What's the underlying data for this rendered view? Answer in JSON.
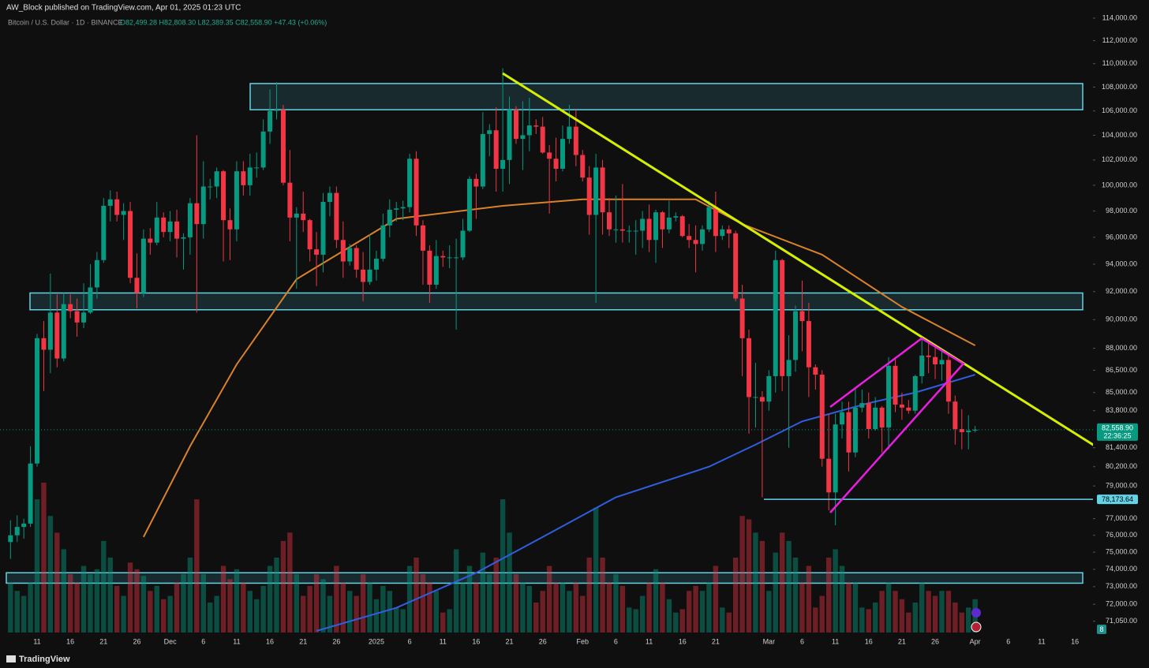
{
  "header": {
    "publisher": "AW_Block published on TradingView.com, Apr 01, 2025 01:23 UTC",
    "symbol": "Bitcoin / U.S. Dollar · 1D · BINANCE",
    "ohlc": "O82,499.28 H82,808.30 L82,389.35 C82,558.90 +47.43 (+0.06%)"
  },
  "footer": {
    "brand": "TradingView",
    "badge": "8"
  },
  "chart_data": {
    "type": "candlestick",
    "log_scale": true,
    "up_color": "#089981",
    "down_color": "#f23645",
    "categories": [
      null,
      null,
      null,
      null,
      "11",
      null,
      null,
      null,
      null,
      "16",
      null,
      null,
      null,
      null,
      "21",
      null,
      null,
      null,
      null,
      "26",
      null,
      null,
      null,
      null,
      "Dec",
      null,
      null,
      null,
      null,
      "6",
      null,
      null,
      null,
      null,
      "11",
      null,
      null,
      null,
      null,
      "16",
      null,
      null,
      null,
      null,
      "21",
      null,
      null,
      null,
      null,
      "26",
      null,
      null,
      null,
      null,
      null,
      "2025",
      null,
      null,
      null,
      null,
      "6",
      null,
      null,
      null,
      null,
      "11",
      null,
      null,
      null,
      null,
      "16",
      null,
      null,
      null,
      null,
      "21",
      null,
      null,
      null,
      null,
      "26",
      null,
      null,
      null,
      null,
      null,
      "Feb",
      null,
      null,
      null,
      null,
      "6",
      null,
      null,
      null,
      null,
      "11",
      null,
      null,
      null,
      null,
      "16",
      null,
      null,
      null,
      null,
      "21",
      null,
      null,
      null,
      null,
      null,
      null,
      null,
      "Mar",
      null,
      null,
      null,
      null,
      "6",
      null,
      null,
      null,
      null,
      "11",
      null,
      null,
      null,
      null,
      "16",
      null,
      null,
      null,
      null,
      "21",
      null,
      null,
      null,
      null,
      "26",
      null,
      null,
      null,
      null,
      null,
      "Apr",
      null,
      null,
      null,
      null,
      "6",
      null,
      null,
      null,
      null,
      "11",
      null,
      null,
      null,
      null,
      "16",
      null,
      null
    ],
    "open": [
      75600,
      76000,
      76500,
      76700,
      80400,
      88700,
      87900,
      90500,
      87300,
      91100,
      90600,
      89800,
      90500,
      92300,
      94300,
      98400,
      98900,
      97700,
      98000,
      93000,
      91900,
      95900,
      95600,
      97500,
      96400,
      97200,
      95900,
      96000,
      98600,
      97000,
      99900,
      99900,
      101100,
      97300,
      96600,
      101100,
      100000,
      101400,
      101400,
      104300,
      106000,
      106100,
      100200,
      97500,
      97800,
      97300,
      95100,
      94700,
      98700,
      99400,
      95800,
      94200,
      95200,
      93600,
      92700,
      93600,
      94400,
      96900,
      98100,
      98200,
      98300,
      102100,
      96900,
      95000,
      92500,
      94600,
      94500,
      94500,
      94500,
      96500,
      100500,
      99900,
      104100,
      104400,
      101300,
      102000,
      106100,
      103700,
      104000,
      104800,
      104700,
      102600,
      102100,
      101300,
      103700,
      104700,
      102400,
      100600,
      97700,
      101400,
      97900,
      96600,
      96600,
      96500,
      96500,
      96500,
      97400,
      95800,
      97900,
      96600,
      97500,
      97600,
      96100,
      95800,
      95500,
      96600,
      98300,
      96100,
      96600,
      96300,
      91500,
      88700,
      84700,
      84700,
      84400,
      86100,
      94300,
      86100,
      87200,
      90600,
      89900,
      86700,
      86200,
      80700,
      78600,
      82900,
      83700,
      81100,
      84000,
      84300,
      82600,
      84000,
      82700,
      86800,
      84200,
      84000,
      83800,
      86100,
      87500,
      87400,
      86900,
      87200,
      84400,
      82600,
      82400,
      82499.28,
      null,
      null,
      null,
      null,
      null,
      null,
      null,
      null,
      null,
      null,
      null,
      null,
      null,
      null,
      null,
      null,
      null
    ],
    "high": [
      76900,
      77200,
      77000,
      81500,
      89000,
      89900,
      93300,
      91800,
      91900,
      91800,
      91500,
      92600,
      94000,
      94900,
      99000,
      99600,
      99500,
      98600,
      98700,
      94800,
      96600,
      96700,
      98700,
      97900,
      98000,
      98100,
      96300,
      99000,
      104000,
      101900,
      100500,
      101400,
      101200,
      98200,
      101900,
      101900,
      102500,
      102600,
      105300,
      107800,
      108400,
      106500,
      102800,
      98300,
      99500,
      97400,
      96400,
      99400,
      99900,
      99900,
      97200,
      95500,
      95400,
      94900,
      96200,
      95000,
      97800,
      98900,
      98700,
      98800,
      102500,
      102700,
      97300,
      95400,
      95800,
      95000,
      95400,
      95900,
      97400,
      100700,
      100900,
      105900,
      104900,
      106300,
      109600,
      107200,
      106400,
      106800,
      107100,
      105300,
      105500,
      103200,
      103800,
      104800,
      106500,
      106100,
      102800,
      101500,
      102500,
      102000,
      99000,
      99200,
      100100,
      96900,
      97300,
      98000,
      98500,
      98100,
      98000,
      98800,
      97900,
      97700,
      97000,
      96900,
      96900,
      98800,
      99500,
      96900,
      96900,
      96500,
      92500,
      89300,
      87000,
      85100,
      86500,
      95000,
      94400,
      88900,
      91000,
      92800,
      91200,
      86900,
      86500,
      83600,
      83600,
      84400,
      84400,
      85300,
      85200,
      85000,
      84700,
      84100,
      87400,
      87400,
      85000,
      84500,
      86200,
      88800,
      88500,
      88300,
      87800,
      87500,
      84800,
      83900,
      83500,
      82808.3,
      null,
      null,
      null,
      null,
      null,
      null,
      null,
      null,
      null,
      null,
      null,
      null,
      null,
      null,
      null,
      null,
      null
    ],
    "low": [
      74600,
      75600,
      75800,
      76500,
      80200,
      85100,
      86300,
      86700,
      87100,
      90100,
      88800,
      89400,
      90400,
      91500,
      94100,
      97200,
      97200,
      95800,
      92600,
      90800,
      91600,
      94700,
      95400,
      96000,
      95700,
      94500,
      93600,
      94700,
      90500,
      95900,
      98900,
      99000,
      94200,
      94300,
      95700,
      99200,
      99200,
      100600,
      101200,
      103300,
      105300,
      100000,
      95700,
      92200,
      96400,
      94200,
      92400,
      93400,
      97600,
      95200,
      93000,
      93900,
      93000,
      91300,
      92500,
      92800,
      94200,
      96000,
      97200,
      97300,
      97900,
      96100,
      92500,
      91200,
      92200,
      93800,
      93700,
      89300,
      94300,
      96400,
      97400,
      99700,
      102300,
      99500,
      99500,
      100100,
      103300,
      101200,
      102700,
      104100,
      102500,
      97800,
      100300,
      101100,
      103300,
      101500,
      100300,
      96200,
      91200,
      96200,
      96100,
      95600,
      95600,
      95600,
      94700,
      95200,
      94900,
      94100,
      95200,
      96300,
      97200,
      96000,
      95200,
      93400,
      95000,
      96400,
      94900,
      95800,
      95200,
      91300,
      86100,
      82300,
      82700,
      78300,
      83800,
      85000,
      85100,
      81400,
      86400,
      87800,
      84700,
      85200,
      80200,
      77500,
      76600,
      82000,
      79900,
      80800,
      83700,
      82000,
      82500,
      81100,
      81300,
      83700,
      83200,
      83600,
      83600,
      85600,
      86300,
      85900,
      85800,
      83600,
      81600,
      81300,
      81300,
      82389.35,
      null,
      null,
      null,
      null,
      null,
      null,
      null,
      null,
      null,
      null,
      null,
      null,
      null,
      null,
      null,
      null,
      null
    ],
    "close": [
      76000,
      76500,
      76700,
      80400,
      88700,
      87900,
      90500,
      87300,
      91100,
      90600,
      89800,
      90500,
      92300,
      94300,
      98400,
      98900,
      97700,
      98000,
      93000,
      91900,
      95900,
      95600,
      97500,
      96400,
      97200,
      95900,
      96000,
      98600,
      97000,
      99900,
      99900,
      101100,
      97300,
      96600,
      101100,
      100000,
      101400,
      101400,
      104300,
      106000,
      106100,
      100200,
      97500,
      97800,
      97300,
      95100,
      94700,
      98700,
      99400,
      95800,
      94200,
      95200,
      93600,
      92700,
      93600,
      94400,
      96900,
      98100,
      98200,
      98300,
      102100,
      96900,
      95000,
      92500,
      94600,
      94500,
      94500,
      94500,
      96500,
      100500,
      99900,
      104100,
      104400,
      101300,
      102000,
      106100,
      103700,
      104000,
      104800,
      104700,
      102600,
      102100,
      101300,
      103700,
      104700,
      102400,
      100600,
      97700,
      101400,
      97900,
      96600,
      96600,
      96500,
      96500,
      96500,
      97400,
      95800,
      97900,
      96600,
      97500,
      97600,
      96100,
      95800,
      95500,
      96600,
      98300,
      96100,
      96600,
      96300,
      91500,
      88700,
      84700,
      84700,
      84400,
      86100,
      94300,
      86100,
      87200,
      90600,
      89900,
      86700,
      86200,
      80700,
      78600,
      82900,
      83700,
      81100,
      84000,
      84300,
      82600,
      84000,
      82700,
      86800,
      84200,
      84000,
      83800,
      86100,
      87500,
      87400,
      86900,
      87200,
      84400,
      82600,
      82400,
      82499.28,
      82558.9,
      null,
      null,
      null,
      null,
      null,
      null,
      null,
      null,
      null,
      null,
      null,
      null,
      null,
      null,
      null,
      null,
      null
    ],
    "volume": [
      30000,
      25000,
      22000,
      30000,
      80000,
      90000,
      70000,
      60000,
      50000,
      35000,
      30000,
      40000,
      35000,
      38000,
      55000,
      45000,
      28000,
      22000,
      42000,
      38000,
      34000,
      25000,
      28000,
      20000,
      22000,
      30000,
      35000,
      45000,
      80000,
      35000,
      18000,
      22000,
      40000,
      32000,
      38000,
      30000,
      25000,
      20000,
      28000,
      40000,
      45000,
      55000,
      60000,
      35000,
      22000,
      28000,
      35000,
      32000,
      22000,
      40000,
      30000,
      25000,
      22000,
      35000,
      30000,
      20000,
      28000,
      25000,
      15000,
      14000,
      40000,
      45000,
      35000,
      30000,
      25000,
      12000,
      14000,
      50000,
      30000,
      40000,
      30000,
      48000,
      35000,
      45000,
      80000,
      60000,
      35000,
      30000,
      28000,
      18000,
      25000,
      40000,
      30000,
      30000,
      25000,
      30000,
      22000,
      45000,
      75000,
      45000,
      30000,
      35000,
      28000,
      15000,
      14000,
      22000,
      30000,
      38000,
      30000,
      20000,
      12000,
      14000,
      25000,
      28000,
      25000,
      30000,
      40000,
      15000,
      12000,
      45000,
      70000,
      68000,
      60000,
      55000,
      25000,
      48000,
      60000,
      55000,
      45000,
      30000,
      40000,
      15000,
      22000,
      45000,
      50000,
      40000,
      30000,
      30000,
      15000,
      14000,
      18000,
      25000,
      30000,
      25000,
      20000,
      12000,
      18000,
      30000,
      25000,
      22000,
      25000,
      25000,
      18000,
      12000,
      15000,
      20000,
      null,
      null,
      null,
      null,
      null,
      null,
      null,
      null,
      null,
      null,
      null,
      null,
      null,
      null,
      null,
      null,
      null
    ],
    "overlays": [
      {
        "color": "#2f5fe0",
        "points": [
          [
            46,
            70510
          ],
          [
            58,
            71800
          ],
          [
            70,
            73800
          ],
          [
            80,
            75900
          ],
          [
            91,
            78300
          ],
          [
            105,
            80200
          ],
          [
            112,
            81600
          ],
          [
            119,
            83100
          ],
          [
            129,
            84300
          ],
          [
            136,
            85000
          ],
          [
            145,
            86200
          ]
        ]
      },
      {
        "color": "#d9822b",
        "points": [
          [
            20,
            75900
          ],
          [
            27,
            81500
          ],
          [
            34,
            86900
          ],
          [
            43,
            92900
          ],
          [
            58,
            97400
          ],
          [
            74,
            98400
          ],
          [
            86,
            98900
          ],
          [
            103,
            98900
          ],
          [
            110,
            97000
          ],
          [
            122,
            94700
          ],
          [
            134,
            90900
          ],
          [
            145,
            88200
          ]
        ]
      }
    ],
    "zones": [
      {
        "low": 106100,
        "high": 108300
      },
      {
        "low": 90700,
        "high": 91900
      },
      {
        "low": 73200,
        "high": 73800
      }
    ],
    "ylim": [
      70510,
      115060
    ],
    "yticks": [
      {
        "value": 114000,
        "label": "114,000.00"
      },
      {
        "value": 112000,
        "label": "112,000.00"
      },
      {
        "value": 110000,
        "label": "110,000.00"
      },
      {
        "value": 108000,
        "label": "108,000.00"
      },
      {
        "value": 106000,
        "label": "106,000.00"
      },
      {
        "value": 104000,
        "label": "104,000.00"
      },
      {
        "value": 102000,
        "label": "102,000.00"
      },
      {
        "value": 100000,
        "label": "100,000.00"
      },
      {
        "value": 98000,
        "label": "98,000.00"
      },
      {
        "value": 96000,
        "label": "96,000.00"
      },
      {
        "value": 94000,
        "label": "94,000.00"
      },
      {
        "value": 92000,
        "label": "92,000.00"
      },
      {
        "value": 90000,
        "label": "90,000.00"
      },
      {
        "value": 88000,
        "label": "88,000.00"
      },
      {
        "value": 86500,
        "label": "86,500.00"
      },
      {
        "value": 85000,
        "label": "85,000.00"
      },
      {
        "value": 83800,
        "label": "83,800.00"
      },
      {
        "value": 81400,
        "label": "81,400.00"
      },
      {
        "value": 80200,
        "label": "80,200.00"
      },
      {
        "value": 79000,
        "label": "79,000.00"
      },
      {
        "value": 77000,
        "label": "77,000.00"
      },
      {
        "value": 76000,
        "label": "76,000.00"
      },
      {
        "value": 75000,
        "label": "75,000.00"
      },
      {
        "value": 74000,
        "label": "74,000.00"
      },
      {
        "value": 73000,
        "label": "73,000.00"
      },
      {
        "value": 72000,
        "label": "72,000.00"
      },
      {
        "value": 71050,
        "label": "71,050.00"
      }
    ],
    "levels": [
      {
        "value": 78173.64,
        "label": "78,173.64"
      }
    ],
    "last_price": {
      "value": 82558.9,
      "label": "82,558.90",
      "countdown": "22:36:25"
    }
  }
}
